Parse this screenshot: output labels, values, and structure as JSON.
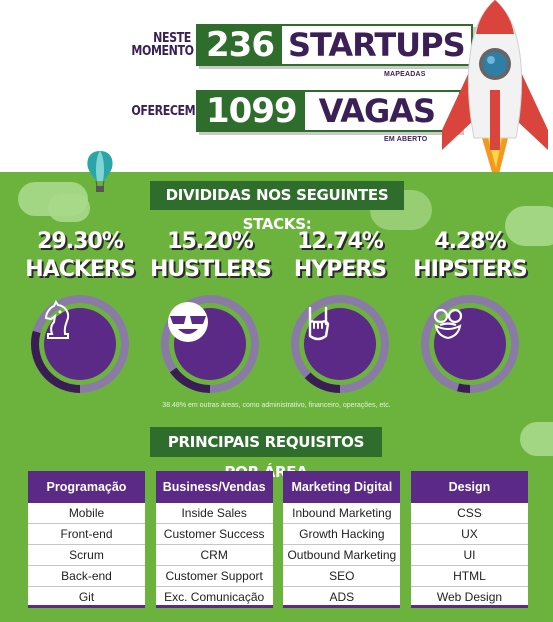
{
  "header": {
    "row1": {
      "prefix_line1": "NESTE",
      "prefix_line2": "MOMENTO",
      "number": "236",
      "word": "STARTUPS",
      "sub": "MAPEADAS"
    },
    "row2": {
      "prefix": "OFERECEM",
      "number": "1099",
      "word": "VAGAS",
      "sub": "EM ABERTO"
    }
  },
  "stacks_title": "DIVIDIDAS NOS SEGUINTES STACKS:",
  "stacks": [
    {
      "pct": "29.30%",
      "name": "HACKERS",
      "value": 29.3,
      "icon": "chess-knight-icon"
    },
    {
      "pct": "15.20%",
      "name": "HUSTLERS",
      "value": 15.2,
      "icon": "sunglasses-smile-icon"
    },
    {
      "pct": "12.74%",
      "name": "HYPERS",
      "value": 12.74,
      "icon": "rock-hand-icon"
    },
    {
      "pct": "4.28%",
      "name": "HIPSTERS",
      "value": 4.28,
      "icon": "hipster-face-icon"
    }
  ],
  "footnote": "38.48% em outras áreas, como administrativo, financeiro, operações, etc.",
  "areas_title": "PRINCIPAIS REQUISITOS POR ÁREA",
  "areas": [
    {
      "title": "Programação",
      "items": [
        "Mobile",
        "Front-end",
        "Scrum",
        "Back-end",
        "Git"
      ]
    },
    {
      "title": "Business/Vendas",
      "items": [
        "Inside Sales",
        "Customer Success",
        "CRM",
        "Customer Support",
        "Exc. Comunicação"
      ]
    },
    {
      "title": "Marketing Digital",
      "items": [
        "Inbound Marketing",
        "Growth Hacking",
        "Outbound Marketing",
        "SEO",
        "ADS"
      ]
    },
    {
      "title": "Design",
      "items": [
        "CSS",
        "UX",
        "UI",
        "HTML",
        "Web Design"
      ]
    }
  ],
  "colors": {
    "green_bg": "#6bb33d",
    "dark_green": "#2f6d2c",
    "purple": "#5b2a86",
    "ring_dark": "#3a1d55",
    "ring_light": "#8a7aa6"
  }
}
